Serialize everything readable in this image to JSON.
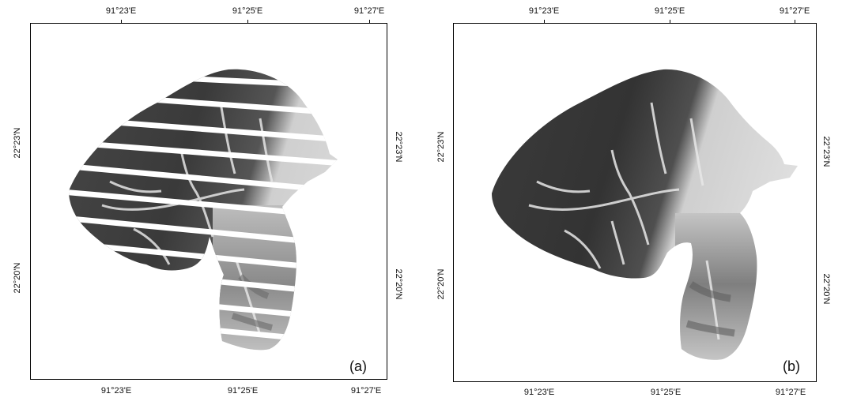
{
  "panels": [
    {
      "label": "(a)",
      "top_ticks": [
        "91°23'E",
        "91°25'E",
        "91°27'E"
      ],
      "bottom_ticks": [
        "91°23'E",
        "91°25'E",
        "91°27'E"
      ],
      "left_ticks": [
        "22°23'N",
        "22°20'N"
      ],
      "right_ticks": [
        "22°23'N",
        "22°20'N"
      ],
      "has_stripes": true
    },
    {
      "label": "(b)",
      "top_ticks": [
        "91°23'E",
        "91°25'E",
        "91°27'E"
      ],
      "bottom_ticks": [
        "91°23'E",
        "91°25'E",
        "91°27'E"
      ],
      "left_ticks": [
        "22°23'N",
        "22°20'N"
      ],
      "right_ticks": [
        "22°23'N",
        "22°20'N"
      ],
      "has_stripes": false
    }
  ],
  "colors": {
    "frame": "#000000",
    "dark_terrain": "#3c3c3c",
    "light_terrain": "#d8d8d8"
  }
}
